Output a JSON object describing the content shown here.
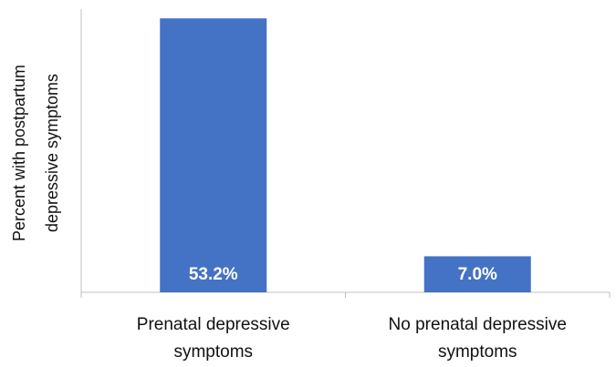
{
  "chart_data": {
    "type": "bar",
    "categories": [
      [
        "Prenatal depressive",
        "symptoms"
      ],
      [
        "No prenatal depressive",
        "symptoms"
      ]
    ],
    "values": [
      53.2,
      7.0
    ],
    "data_labels": [
      "53.2%",
      "7.0%"
    ],
    "ylabel": [
      "Percent with postpartum",
      "depressive symptoms"
    ],
    "xlabel": "",
    "title": "",
    "ylim": [
      0,
      55
    ],
    "grid": false,
    "bar_color": "#4472C4",
    "axis_color": "#BFBFBF",
    "label_color": "#FFFFFF"
  }
}
